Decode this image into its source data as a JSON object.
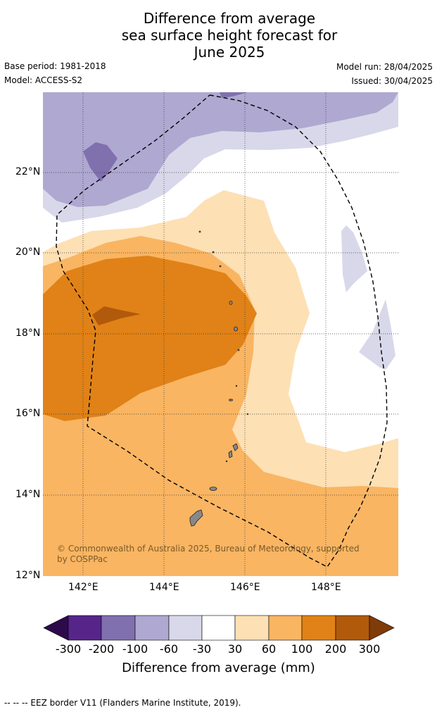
{
  "title_lines": [
    "Difference from average",
    "sea surface height forecast for",
    "June 2025"
  ],
  "base_period": "Base period: 1981-2018",
  "model": "Model: ACCESS-S2",
  "model_run": "Model run: 28/04/2025",
  "issued": "Issued: 30/04/2025",
  "credit": "© Commonwealth of Australia 2025, Bureau of Meteorology, supported by COSPPac",
  "lat_labels": [
    "22°N",
    "20°N",
    "18°N",
    "16°N",
    "14°N",
    "12°N"
  ],
  "lon_labels": [
    "142°E",
    "144°E",
    "146°E",
    "148°E"
  ],
  "colorbar": {
    "ticks": [
      "-300",
      "-200",
      "-100",
      "-60",
      "-30",
      "30",
      "60",
      "100",
      "200",
      "300"
    ],
    "title": "Difference from average (mm)",
    "colors": [
      "#2d0a4b",
      "#56258a",
      "#8070ae",
      "#afa8d1",
      "#d8d8ea",
      "#ffffff",
      "#fde0b4",
      "#f9b562",
      "#e08217",
      "#b25a0b",
      "#7f3b08"
    ]
  },
  "footnote": "--  --  -- EEZ border V11 (Flanders Marine Institute, 2019)."
}
